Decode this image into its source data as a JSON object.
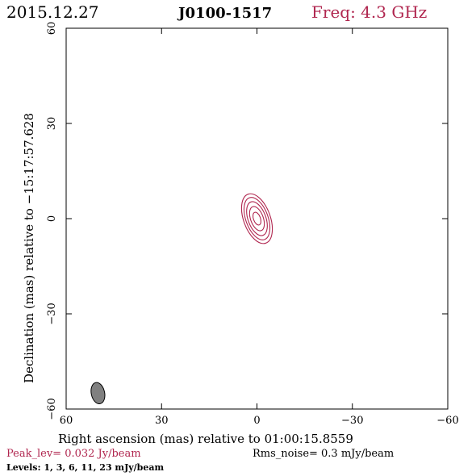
{
  "header": {
    "date": "2015.12.27",
    "source": "J0100-1517",
    "frequency": "Freq: 4.3 GHz"
  },
  "footer": {
    "peak": "Peak_lev=  0.032 Jy/beam",
    "rms": "Rms_noise=  0.3 mJy/beam",
    "levels": "Levels:   1,   3,   6,   11,   23 mJy/beam"
  },
  "colors": {
    "accent": "#b0264f",
    "beam_fill": "#808080",
    "frame": "#000000"
  },
  "chart_data": {
    "type": "contour",
    "title": "J0100-1517",
    "xlabel": "Right ascension (mas) relative to 01:00:15.8559",
    "ylabel": "Declination (mas) relative to −15:17:57.628",
    "xlim": [
      60,
      -60
    ],
    "ylim": [
      -60,
      60
    ],
    "x_ticks": [
      60,
      30,
      0,
      -30,
      -60
    ],
    "y_ticks": [
      60,
      30,
      0,
      -30,
      -60
    ],
    "x_tick_labels": [
      "60",
      "30",
      "0",
      "−30",
      "−60"
    ],
    "y_tick_labels": [
      "60",
      "30",
      "0",
      "−30",
      "−60"
    ],
    "contour_levels_mJy": [
      1,
      3,
      6,
      11,
      23
    ],
    "peak_Jy_per_beam": 0.032,
    "rms_noise_mJy_per_beam": 0.3,
    "source_center_mas": [
      0,
      0
    ],
    "contours": [
      {
        "level": 1,
        "x_half_mas": 4.2,
        "y_half_mas": 8.2,
        "pa_deg": -20
      },
      {
        "level": 3,
        "x_half_mas": 3.5,
        "y_half_mas": 7.0,
        "pa_deg": -20
      },
      {
        "level": 6,
        "x_half_mas": 2.8,
        "y_half_mas": 5.6,
        "pa_deg": -20
      },
      {
        "level": 11,
        "x_half_mas": 2.0,
        "y_half_mas": 4.0,
        "pa_deg": -20
      },
      {
        "level": 23,
        "x_half_mas": 1.1,
        "y_half_mas": 2.1,
        "pa_deg": -20
      }
    ],
    "beam": {
      "center_mas": [
        50,
        -55
      ],
      "x_half_mas": 2.1,
      "y_half_mas": 3.4,
      "pa_deg": -12
    }
  }
}
